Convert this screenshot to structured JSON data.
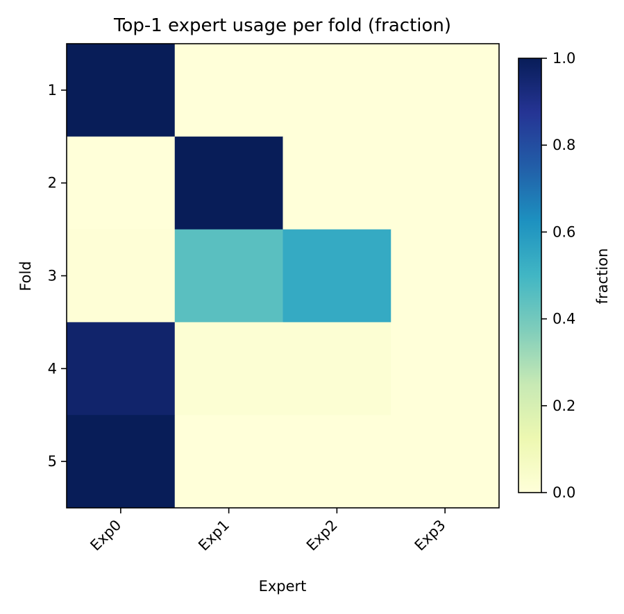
{
  "chart_data": {
    "type": "heatmap",
    "title": "Top-1 expert usage per fold (fraction)",
    "xlabel": "Expert",
    "ylabel": "Fold",
    "x_categories": [
      "Exp0",
      "Exp1",
      "Exp2",
      "Exp3"
    ],
    "y_categories": [
      "1",
      "2",
      "3",
      "4",
      "5"
    ],
    "values": [
      [
        1.0,
        0.0,
        0.0,
        0.0
      ],
      [
        0.0,
        1.0,
        0.0,
        0.0
      ],
      [
        0.01,
        0.45,
        0.54,
        0.0
      ],
      [
        0.96,
        0.02,
        0.02,
        0.0
      ],
      [
        1.0,
        0.0,
        0.0,
        0.0
      ]
    ],
    "colormap": "YlGnBu",
    "colorbar": {
      "label": "fraction",
      "range": [
        0.0,
        1.0
      ],
      "ticks": [
        0.0,
        0.2,
        0.4,
        0.6,
        0.8,
        1.0
      ],
      "tick_labels": [
        "0.0",
        "0.2",
        "0.4",
        "0.6",
        "0.8",
        "1.0"
      ]
    }
  }
}
